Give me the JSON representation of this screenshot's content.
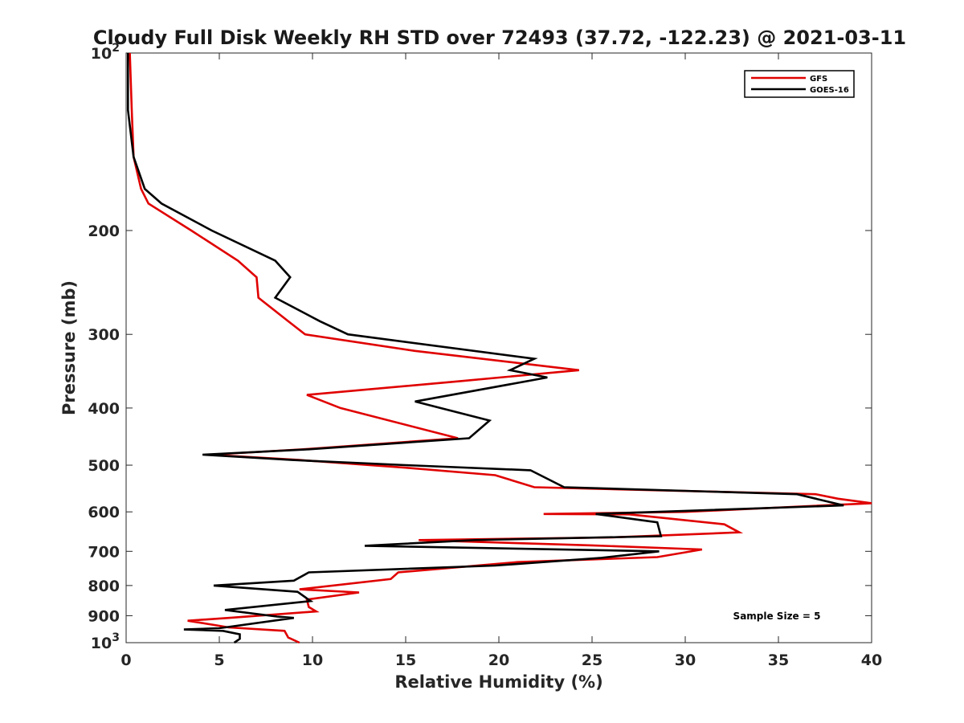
{
  "chart_data": {
    "type": "line",
    "title": "Cloudy Full Disk Weekly RH STD over 72493 (37.72, -122.23) @ 2021-03-11",
    "xlabel": "Relative Humidity (%)",
    "ylabel": "Pressure (mb)",
    "xlim": [
      0,
      40
    ],
    "ylim": [
      100,
      1000
    ],
    "y_scale": "log",
    "y_reversed": true,
    "grid": false,
    "legend_position": "top-right",
    "x_ticks": [
      "0",
      "5",
      "10",
      "15",
      "20",
      "25",
      "30",
      "35",
      "40"
    ],
    "y_ticks": [
      {
        "value": 100,
        "label": "10",
        "sup": "2"
      },
      {
        "value": 200,
        "label": "200",
        "sup": ""
      },
      {
        "value": 300,
        "label": "300",
        "sup": ""
      },
      {
        "value": 400,
        "label": "400",
        "sup": ""
      },
      {
        "value": 500,
        "label": "500",
        "sup": ""
      },
      {
        "value": 600,
        "label": "600",
        "sup": ""
      },
      {
        "value": 700,
        "label": "700",
        "sup": ""
      },
      {
        "value": 800,
        "label": "800",
        "sup": ""
      },
      {
        "value": 900,
        "label": "900",
        "sup": ""
      },
      {
        "value": 1000,
        "label": "10",
        "sup": "3"
      }
    ],
    "annotation": "Sample Size = 5",
    "series": [
      {
        "name": "GFS",
        "color": "#e00000",
        "points": [
          [
            0.2,
            100
          ],
          [
            0.3,
            125
          ],
          [
            0.4,
            150
          ],
          [
            0.8,
            170
          ],
          [
            1.2,
            180
          ],
          [
            3.5,
            200
          ],
          [
            6.0,
            225
          ],
          [
            7.0,
            240
          ],
          [
            7.1,
            260
          ],
          [
            8.7,
            285
          ],
          [
            9.6,
            300
          ],
          [
            15.5,
            320
          ],
          [
            24.3,
            345
          ],
          [
            18.0,
            360
          ],
          [
            9.7,
            380
          ],
          [
            11.5,
            400
          ],
          [
            17.8,
            450
          ],
          [
            9.5,
            470
          ],
          [
            4.5,
            480
          ],
          [
            9.3,
            490
          ],
          [
            15.0,
            505
          ],
          [
            19.8,
            520
          ],
          [
            21.9,
            545
          ],
          [
            37.0,
            560
          ],
          [
            38.2,
            570
          ],
          [
            40,
            580
          ],
          [
            30.0,
            600
          ],
          [
            22.4,
            605
          ],
          [
            27.0,
            606
          ],
          [
            32.1,
            630
          ],
          [
            32.9,
            650
          ],
          [
            26.0,
            663
          ],
          [
            15.7,
            670
          ],
          [
            25.0,
            684
          ],
          [
            30.9,
            695
          ],
          [
            28.5,
            716
          ],
          [
            21.0,
            730
          ],
          [
            14.6,
            760
          ],
          [
            14.2,
            780
          ],
          [
            9.3,
            812
          ],
          [
            12.5,
            822
          ],
          [
            9.7,
            845
          ],
          [
            9.8,
            870
          ],
          [
            10.2,
            885
          ],
          [
            5.5,
            908
          ],
          [
            3.3,
            918
          ],
          [
            4.9,
            935
          ],
          [
            5.5,
            942
          ],
          [
            8.5,
            955
          ],
          [
            8.7,
            980
          ],
          [
            9.3,
            1000
          ]
        ]
      },
      {
        "name": "GOES-16",
        "color": "#000000",
        "points": [
          [
            0.1,
            100
          ],
          [
            0.1,
            125
          ],
          [
            0.4,
            150
          ],
          [
            1.0,
            170
          ],
          [
            1.9,
            180
          ],
          [
            4.6,
            200
          ],
          [
            8.0,
            225
          ],
          [
            8.8,
            240
          ],
          [
            8.0,
            260
          ],
          [
            10.4,
            285
          ],
          [
            11.9,
            300
          ],
          [
            21.9,
            330
          ],
          [
            20.6,
            345
          ],
          [
            22.6,
            355
          ],
          [
            15.5,
            390
          ],
          [
            19.5,
            420
          ],
          [
            18.4,
            450
          ],
          [
            9.8,
            470
          ],
          [
            4.1,
            480
          ],
          [
            8.9,
            490
          ],
          [
            15.0,
            500
          ],
          [
            21.7,
            510
          ],
          [
            23.5,
            545
          ],
          [
            36.0,
            560
          ],
          [
            38.5,
            585
          ],
          [
            25.2,
            605
          ],
          [
            28.5,
            625
          ],
          [
            28.7,
            660
          ],
          [
            18.7,
            670
          ],
          [
            12.8,
            685
          ],
          [
            28.6,
            700
          ],
          [
            25.5,
            718
          ],
          [
            19.8,
            740
          ],
          [
            9.8,
            760
          ],
          [
            9.0,
            785
          ],
          [
            4.7,
            800
          ],
          [
            9.2,
            820
          ],
          [
            9.9,
            850
          ],
          [
            5.3,
            880
          ],
          [
            8.1,
            903
          ],
          [
            9.0,
            908
          ],
          [
            5.0,
            945
          ],
          [
            3.1,
            950
          ],
          [
            5.2,
            955
          ],
          [
            6.1,
            968
          ],
          [
            6.1,
            985
          ],
          [
            5.8,
            1000
          ]
        ]
      }
    ]
  }
}
